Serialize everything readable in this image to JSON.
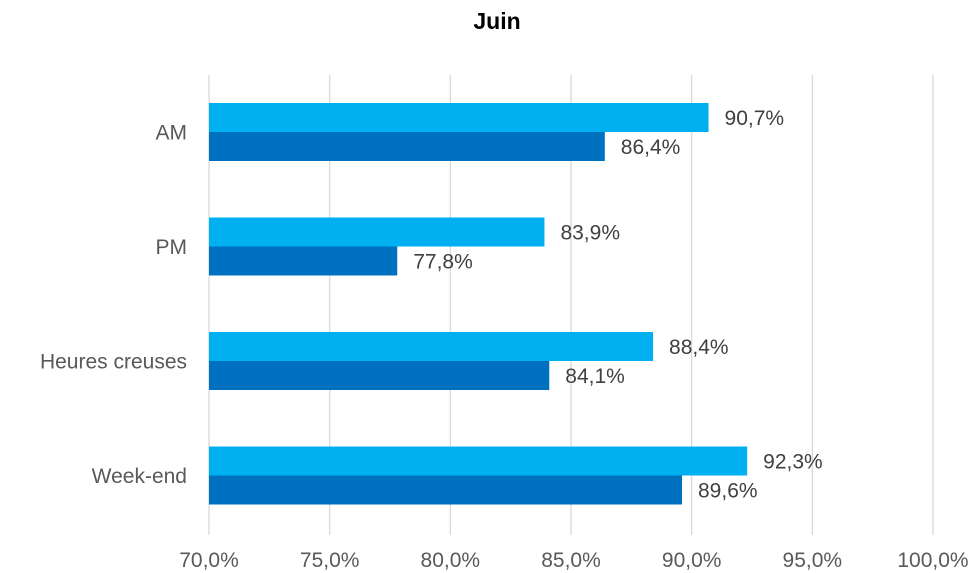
{
  "chart_data": {
    "type": "bar",
    "orientation": "horizontal",
    "title": "Juin",
    "categories": [
      "AM",
      "PM",
      "Heures creuses",
      "Week-end"
    ],
    "series": [
      {
        "values": [
          90.7,
          83.9,
          88.4,
          92.3
        ],
        "color": "#00B0F0",
        "labels": [
          "90,7%",
          "83,9%",
          "88,4%",
          "92,3%"
        ]
      },
      {
        "values": [
          86.4,
          77.8,
          84.1,
          89.6
        ],
        "color": "#0070C0",
        "labels": [
          "86,4%",
          "77,8%",
          "84,1%",
          "89,6%"
        ]
      }
    ],
    "xlim": [
      70,
      100
    ],
    "xticks": [
      70,
      75,
      80,
      85,
      90,
      95,
      100
    ],
    "xtick_labels": [
      "70,0%",
      "75,0%",
      "80,0%",
      "85,0%",
      "90,0%",
      "95,0%",
      "100,0%"
    ],
    "grid": "vertical",
    "legend": "none"
  }
}
